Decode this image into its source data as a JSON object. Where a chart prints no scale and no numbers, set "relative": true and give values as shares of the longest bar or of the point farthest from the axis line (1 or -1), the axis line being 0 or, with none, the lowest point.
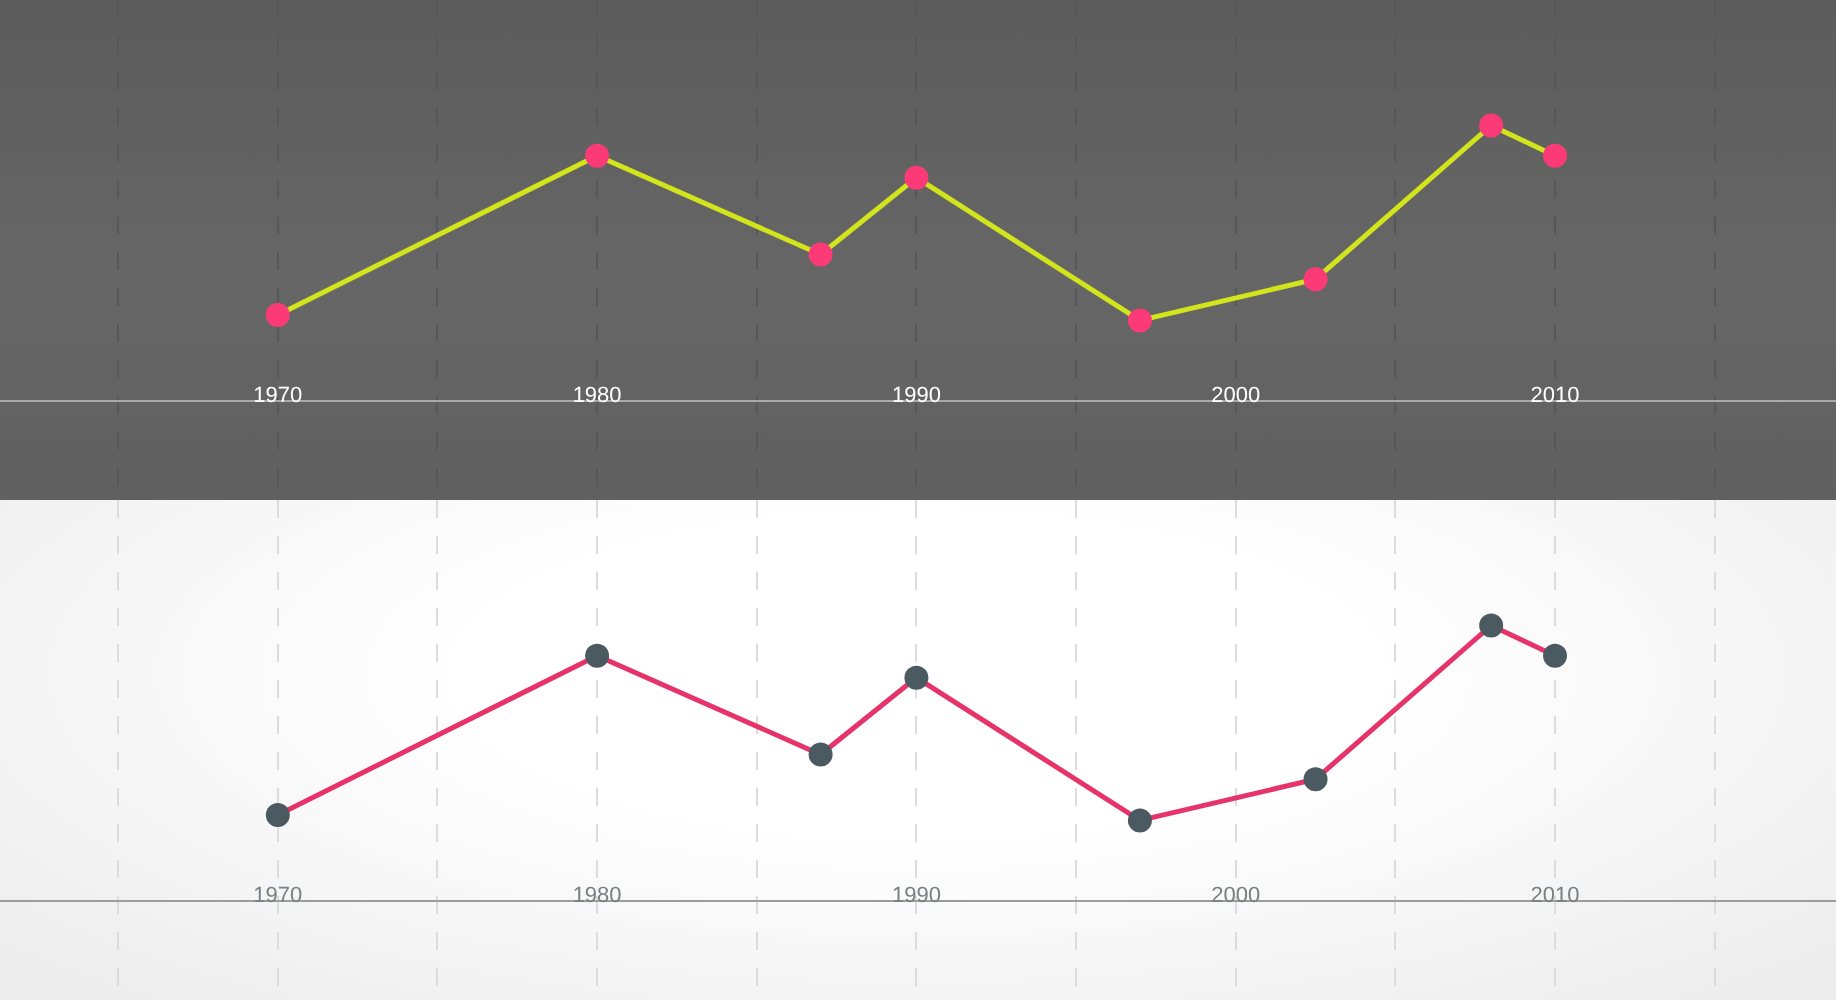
{
  "chart_data": [
    {
      "type": "line",
      "x": [
        1970,
        1980,
        1987,
        1990,
        1997,
        2002.5,
        2008,
        2010
      ],
      "series": [
        {
          "color": "#d2e51c",
          "colors": [
            "#fd3a78",
            "#fd3a78",
            "#fd3a78",
            "#fd3a78",
            "#fd3a78",
            "#fd3a78",
            "#fd3a78",
            "#fd3a78"
          ],
          "values": [
            0.31,
            0.89,
            0.53,
            0.81,
            0.29,
            0.44,
            1,
            0.89
          ]
        }
      ],
      "relative": true,
      "xlim": [
        1961.3,
        2018.8
      ],
      "xticks": [
        {
          "value": 1965,
          "label": null
        },
        1970,
        {
          "value": 1975,
          "label": null
        },
        1980,
        {
          "value": 1985,
          "label": null
        },
        1990,
        {
          "value": 1995,
          "label": null
        },
        2000,
        {
          "value": 2005,
          "label": null
        },
        2010,
        {
          "value": 2015,
          "label": null
        }
      ],
      "grid": "x",
      "marker": "circle",
      "line_style": "solid",
      "tick_labels": "x"
    },
    {
      "type": "line",
      "x": [
        1970,
        1980,
        1987,
        1990,
        1997,
        2002.5,
        2008,
        2010
      ],
      "series": [
        {
          "color": "#e6336a",
          "colors": [
            "#4b5a60",
            "#4b5a60",
            "#4b5a60",
            "#4b5a60",
            "#4b5a60",
            "#4b5a60",
            "#4b5a60",
            "#4b5a60"
          ],
          "values": [
            0.31,
            0.89,
            0.53,
            0.81,
            0.29,
            0.44,
            1,
            0.89
          ]
        }
      ],
      "relative": true,
      "xlim": [
        1961.3,
        2018.8
      ],
      "xticks": [
        {
          "value": 1965,
          "label": null
        },
        1970,
        {
          "value": 1975,
          "label": null
        },
        1980,
        {
          "value": 1985,
          "label": null
        },
        1990,
        {
          "value": 1995,
          "label": null
        },
        2000,
        {
          "value": 2005,
          "label": null
        },
        2010,
        {
          "value": 2015,
          "label": null
        }
      ],
      "grid": "x",
      "marker": "circle",
      "line_style": "solid",
      "tick_labels": "x"
    }
  ]
}
